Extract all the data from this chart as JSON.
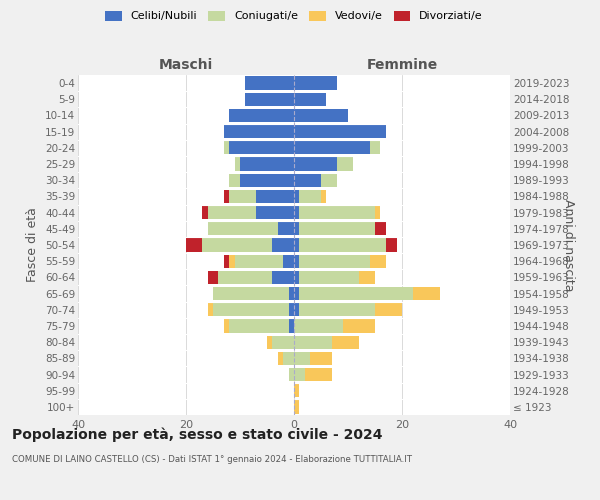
{
  "age_groups": [
    "100+",
    "95-99",
    "90-94",
    "85-89",
    "80-84",
    "75-79",
    "70-74",
    "65-69",
    "60-64",
    "55-59",
    "50-54",
    "45-49",
    "40-44",
    "35-39",
    "30-34",
    "25-29",
    "20-24",
    "15-19",
    "10-14",
    "5-9",
    "0-4"
  ],
  "birth_years": [
    "≤ 1923",
    "1924-1928",
    "1929-1933",
    "1934-1938",
    "1939-1943",
    "1944-1948",
    "1949-1953",
    "1954-1958",
    "1959-1963",
    "1964-1968",
    "1969-1973",
    "1974-1978",
    "1979-1983",
    "1984-1988",
    "1989-1993",
    "1994-1998",
    "1999-2003",
    "2004-2008",
    "2009-2013",
    "2014-2018",
    "2019-2023"
  ],
  "males": {
    "celibi": [
      0,
      0,
      0,
      0,
      0,
      1,
      1,
      1,
      4,
      2,
      4,
      3,
      7,
      7,
      10,
      10,
      12,
      13,
      12,
      9,
      9
    ],
    "coniugati": [
      0,
      0,
      1,
      2,
      4,
      11,
      14,
      14,
      10,
      9,
      13,
      13,
      9,
      5,
      2,
      1,
      1,
      0,
      0,
      0,
      0
    ],
    "vedovi": [
      0,
      0,
      0,
      1,
      1,
      1,
      1,
      0,
      0,
      1,
      0,
      0,
      0,
      0,
      0,
      0,
      0,
      0,
      0,
      0,
      0
    ],
    "divorziati": [
      0,
      0,
      0,
      0,
      0,
      0,
      0,
      0,
      2,
      1,
      3,
      0,
      1,
      1,
      0,
      0,
      0,
      0,
      0,
      0,
      0
    ]
  },
  "females": {
    "nubili": [
      0,
      0,
      0,
      0,
      0,
      0,
      1,
      1,
      1,
      1,
      1,
      1,
      1,
      1,
      5,
      8,
      14,
      17,
      10,
      6,
      8
    ],
    "coniugate": [
      0,
      0,
      2,
      3,
      7,
      9,
      14,
      21,
      11,
      13,
      16,
      14,
      14,
      4,
      3,
      3,
      2,
      0,
      0,
      0,
      0
    ],
    "vedove": [
      1,
      1,
      5,
      4,
      5,
      6,
      5,
      5,
      3,
      3,
      0,
      0,
      1,
      1,
      0,
      0,
      0,
      0,
      0,
      0,
      0
    ],
    "divorziate": [
      0,
      0,
      0,
      0,
      0,
      0,
      0,
      0,
      0,
      0,
      2,
      2,
      0,
      0,
      0,
      0,
      0,
      0,
      0,
      0,
      0
    ]
  },
  "colors": {
    "celibi": "#4472c4",
    "coniugati": "#c5d9a0",
    "vedovi": "#f9c75a",
    "divorziati": "#c0222b"
  },
  "xlim": 40,
  "title": "Popolazione per età, sesso e stato civile - 2024",
  "subtitle": "COMUNE DI LAINO CASTELLO (CS) - Dati ISTAT 1° gennaio 2024 - Elaborazione TUTTITALIA.IT",
  "ylabel_left": "Fasce di età",
  "ylabel_right": "Anni di nascita",
  "xlabel_left": "Maschi",
  "xlabel_right": "Femmine",
  "bg_color": "#f0f0f0",
  "plot_bg_color": "#ffffff"
}
